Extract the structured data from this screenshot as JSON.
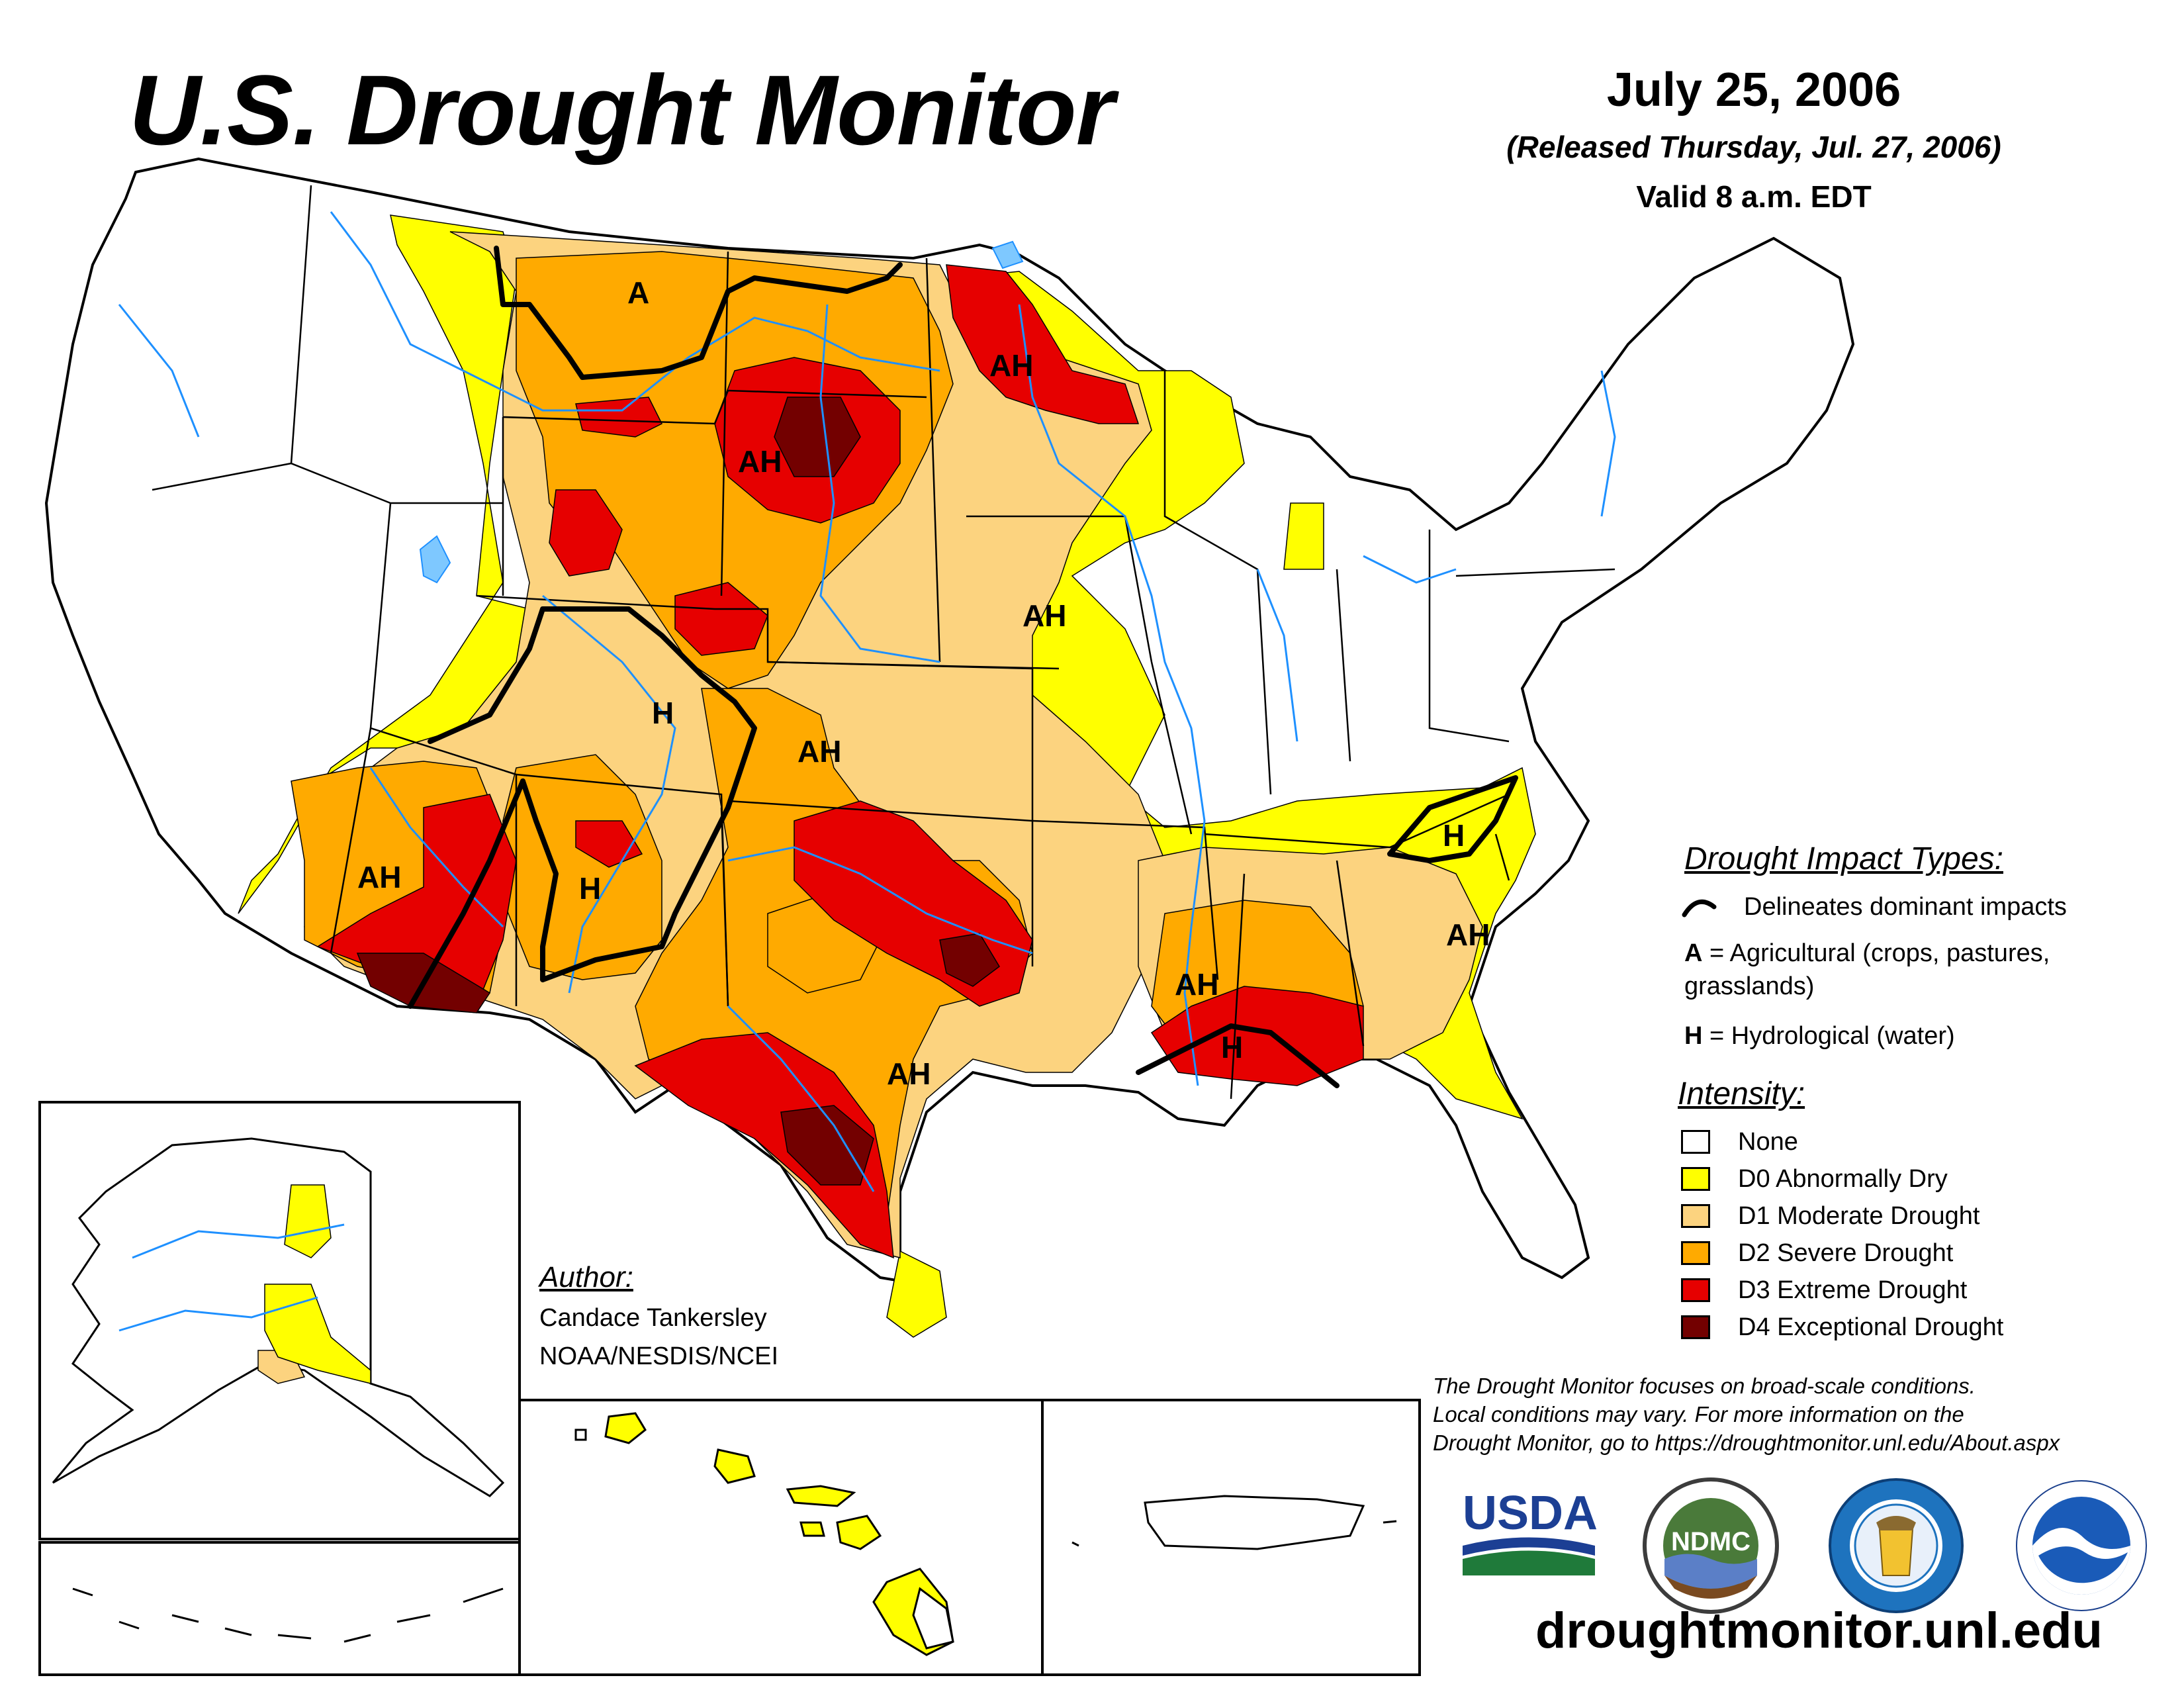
{
  "header": {
    "title": "U.S. Drought Monitor",
    "date": "July 25, 2006",
    "released": "(Released Thursday, Jul. 27, 2006)",
    "valid": "Valid 8 a.m. EDT"
  },
  "map": {
    "impact_labels": [
      {
        "key": "a1",
        "text": "A"
      },
      {
        "key": "ah1",
        "text": "AH"
      },
      {
        "key": "ah2",
        "text": "AH"
      },
      {
        "key": "ah3",
        "text": "AH"
      },
      {
        "key": "h1",
        "text": "H"
      },
      {
        "key": "ah4",
        "text": "AH"
      },
      {
        "key": "ah5",
        "text": "AH"
      },
      {
        "key": "h2",
        "text": "H"
      },
      {
        "key": "ah6",
        "text": "AH"
      },
      {
        "key": "ah7",
        "text": "AH"
      },
      {
        "key": "h3",
        "text": "H"
      },
      {
        "key": "h4",
        "text": "H"
      },
      {
        "key": "ah8",
        "text": "AH"
      }
    ]
  },
  "legend": {
    "impact_title": "Drought Impact Types:",
    "delineates": "Delineates dominant impacts",
    "agricultural_code": "A",
    "agricultural_line1": " = Agricultural (crops, pastures,",
    "agricultural_line2": "grasslands)",
    "hydrological_code": "H",
    "hydrological_text": " = Hydrological (water)",
    "intensity_title": "Intensity:",
    "categories": [
      {
        "label": "None",
        "color": "#ffffff"
      },
      {
        "label": "D0 Abnormally Dry",
        "color": "#ffff00"
      },
      {
        "label": "D1 Moderate Drought",
        "color": "#fcd37f"
      },
      {
        "label": "D2 Severe Drought",
        "color": "#ffaa00"
      },
      {
        "label": "D3 Extreme Drought",
        "color": "#e60000"
      },
      {
        "label": "D4 Exceptional Drought",
        "color": "#730000"
      }
    ]
  },
  "author": {
    "heading": "Author:",
    "name": "Candace Tankersley",
    "org": "NOAA/NESDIS/NCEI"
  },
  "disclaimer": {
    "line1": "The Drought Monitor focuses on broad-scale conditions.",
    "line2": "Local conditions may vary. For more information on the",
    "line3": "Drought Monitor, go to https://droughtmonitor.unl.edu/About.aspx"
  },
  "logos": {
    "usda": "USDA",
    "ndmc": "NDMC"
  },
  "footer": {
    "site": "droughtmonitor.unl.edu"
  },
  "colors": {
    "none": "#ffffff",
    "d0": "#ffff00",
    "d1": "#fcd37f",
    "d2": "#ffaa00",
    "d3": "#e60000",
    "d4": "#730000",
    "water": "#1e90ff"
  }
}
